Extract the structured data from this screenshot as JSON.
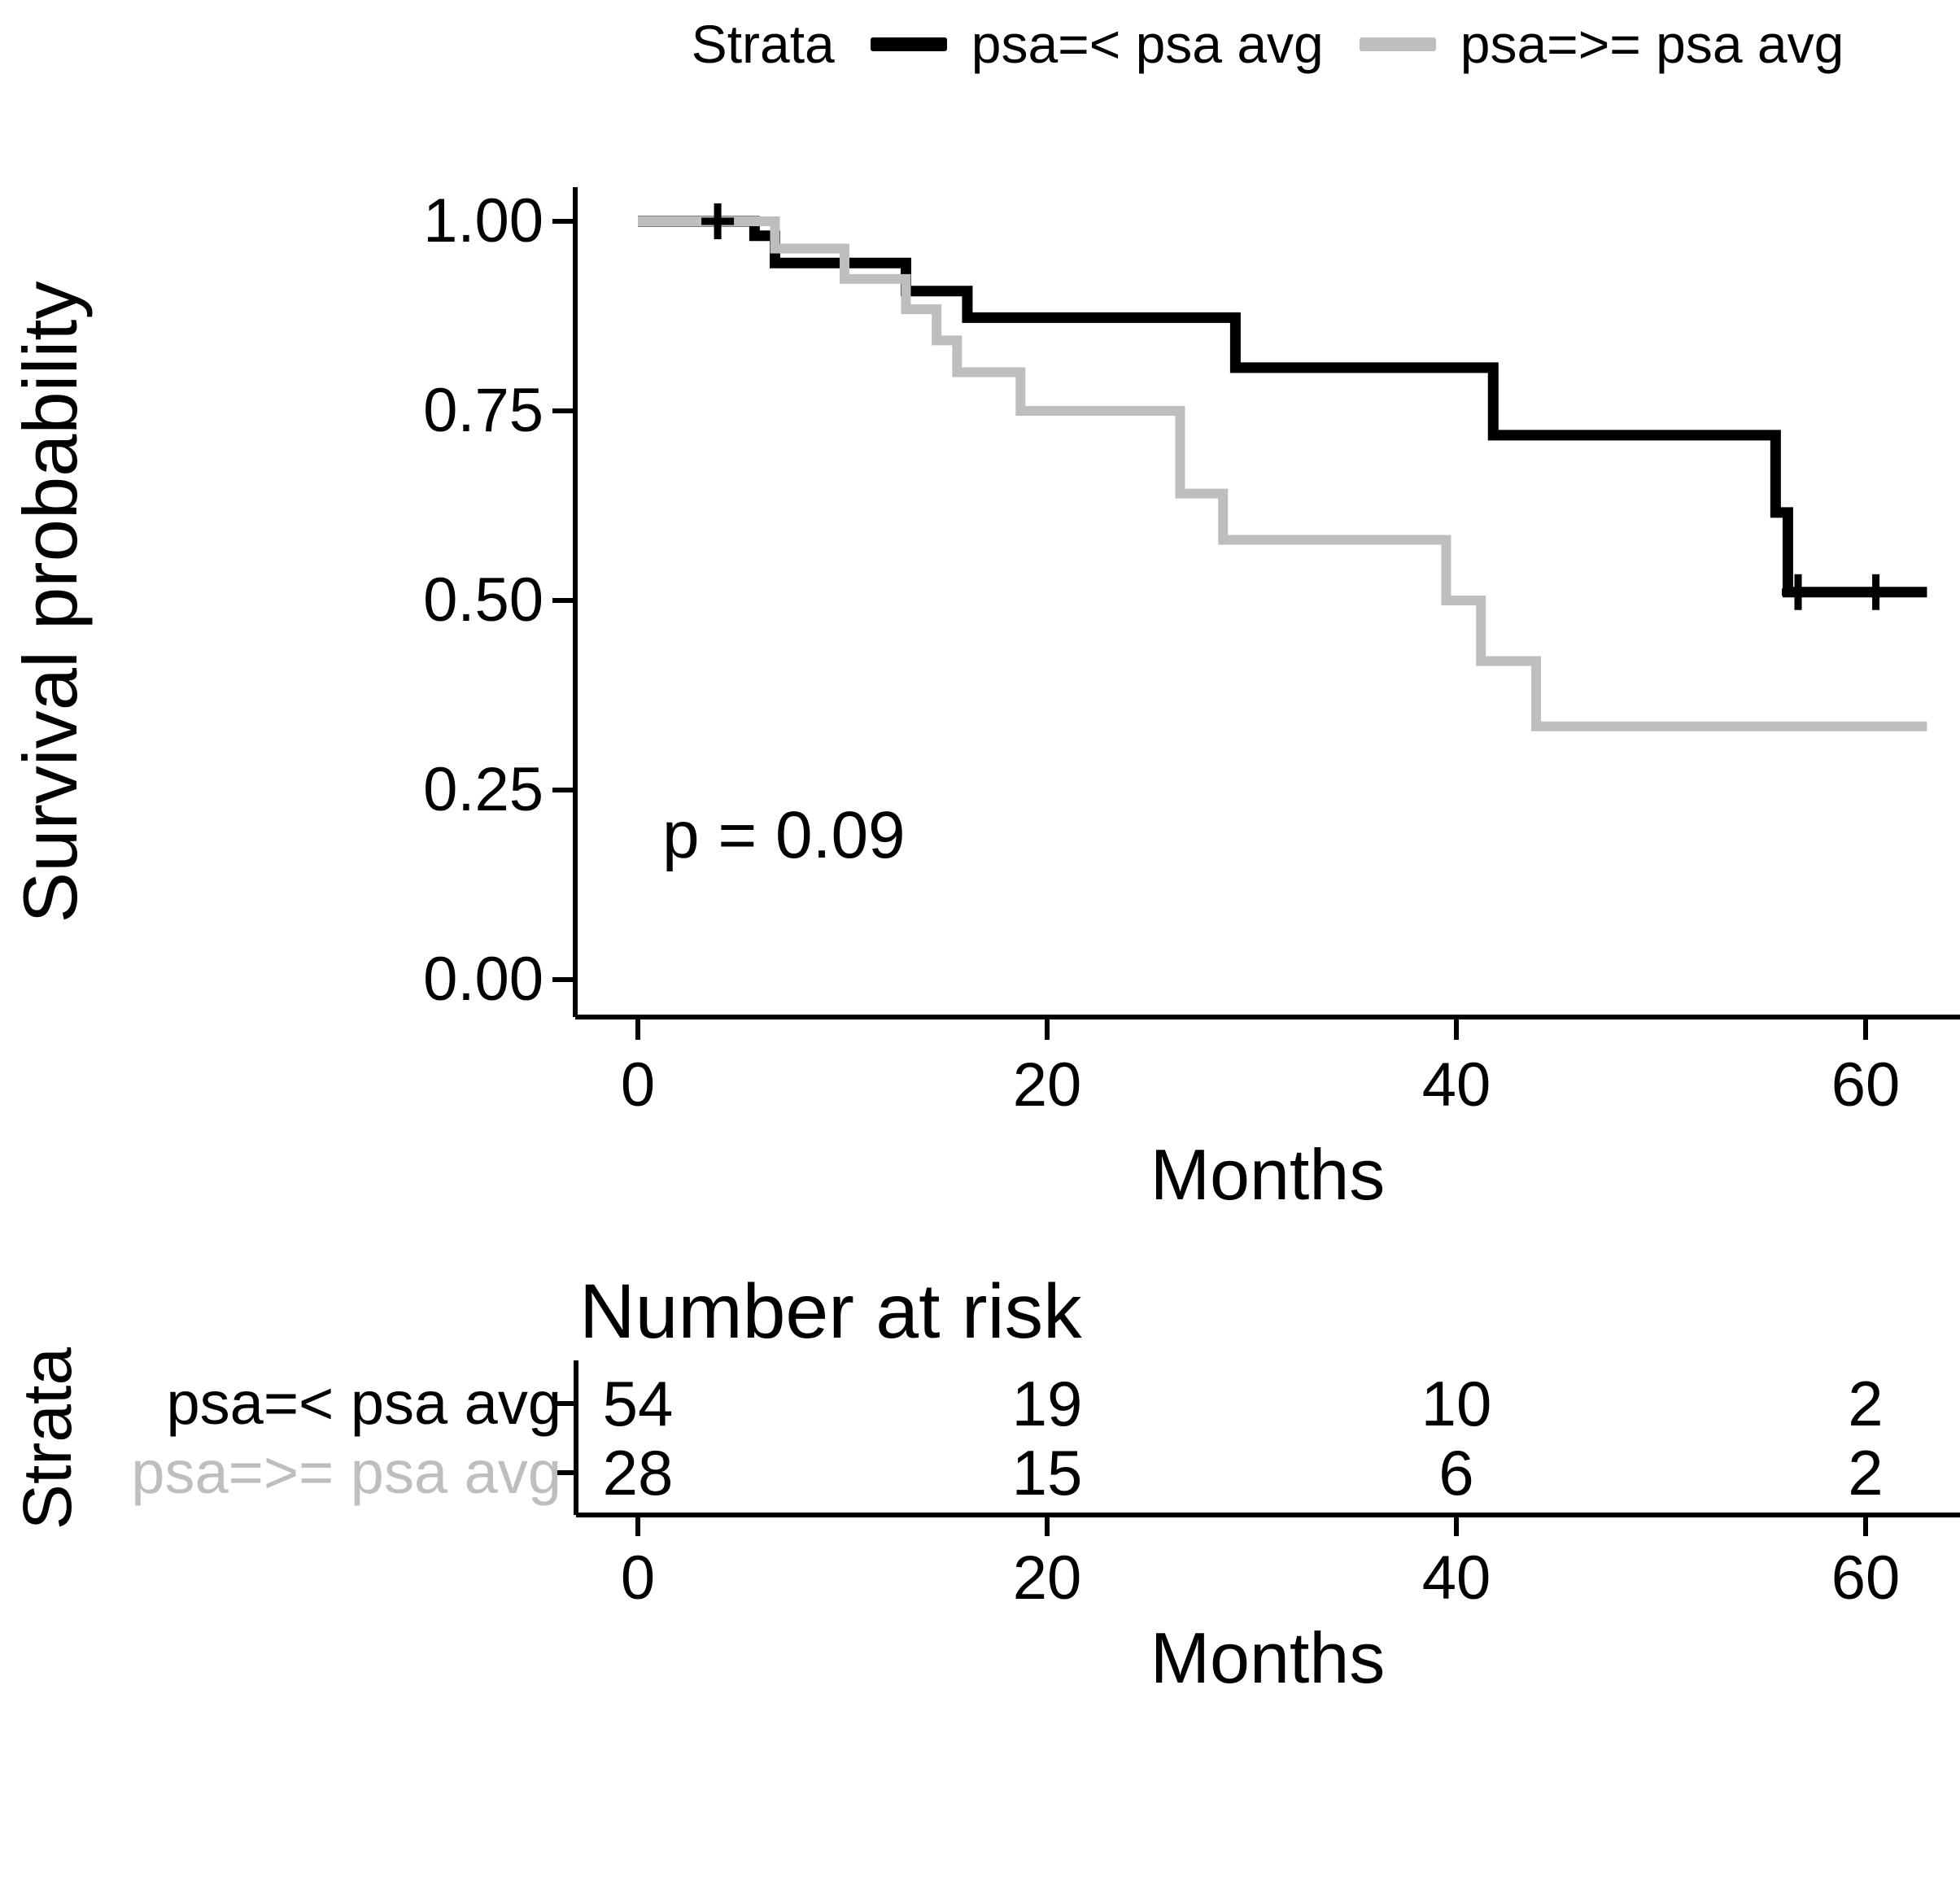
{
  "chart_data": {
    "type": "line",
    "subtype": "kaplan-meier-step",
    "p_value": "p = 0.09",
    "legend": {
      "title": "Strata",
      "entries": [
        {
          "label": "psa=< psa avg",
          "color": "#000000"
        },
        {
          "label": "psa=>= psa avg",
          "color": "#bebebe"
        }
      ],
      "position": "top"
    },
    "x_axis": {
      "label": "Months",
      "ticks": [
        "0",
        "20",
        "40",
        "60"
      ],
      "tick_values": [
        0,
        20,
        40,
        60
      ],
      "range": [
        0,
        63
      ]
    },
    "y_axis": {
      "label": "Survival probability",
      "ticks": [
        "1.00",
        "0.75",
        "0.50",
        "0.25",
        "0.00"
      ],
      "tick_values": [
        1.0,
        0.75,
        0.5,
        0.25,
        0.0
      ],
      "range": [
        0,
        1
      ]
    },
    "grid": "off",
    "series": [
      {
        "name": "psa=< psa avg",
        "color": "#000000",
        "steps": [
          [
            0,
            1.0
          ],
          [
            5.7,
            0.981
          ],
          [
            6.7,
            0.945
          ],
          [
            13.1,
            0.908
          ],
          [
            16.1,
            0.873
          ],
          [
            29.2,
            0.807
          ],
          [
            41.8,
            0.718
          ],
          [
            55.6,
            0.616
          ],
          [
            56.2,
            0.511
          ]
        ],
        "end_time": 63
      },
      {
        "name": "psa=>= psa avg",
        "color": "#bebebe",
        "steps": [
          [
            0,
            1.0
          ],
          [
            6.7,
            0.964
          ],
          [
            10.1,
            0.924
          ],
          [
            13.1,
            0.884
          ],
          [
            14.6,
            0.843
          ],
          [
            15.6,
            0.801
          ],
          [
            18.7,
            0.75
          ],
          [
            26.5,
            0.641
          ],
          [
            28.6,
            0.58
          ],
          [
            39.5,
            0.5
          ],
          [
            41.2,
            0.42
          ],
          [
            43.9,
            0.334
          ]
        ],
        "end_time": 63
      },
      {
        "name": "censor-marks",
        "marks": [
          {
            "series": 0,
            "t": 3.9,
            "s": 1.0
          },
          {
            "series": 0,
            "t": 56.7,
            "s": 0.511
          },
          {
            "series": 0,
            "t": 60.5,
            "s": 0.511
          }
        ]
      }
    ],
    "risk_table": {
      "title": "Number at risk",
      "axis_label": "Strata",
      "x_label": "Months",
      "times": [
        "0",
        "20",
        "40",
        "60"
      ],
      "rows": [
        {
          "label": "psa=< psa avg",
          "color": "#000000",
          "counts": [
            "54",
            "19",
            "10",
            "2"
          ]
        },
        {
          "label": "psa=>= psa avg",
          "color": "#bebebe",
          "counts": [
            "28",
            "15",
            "6",
            "2"
          ]
        }
      ]
    }
  }
}
